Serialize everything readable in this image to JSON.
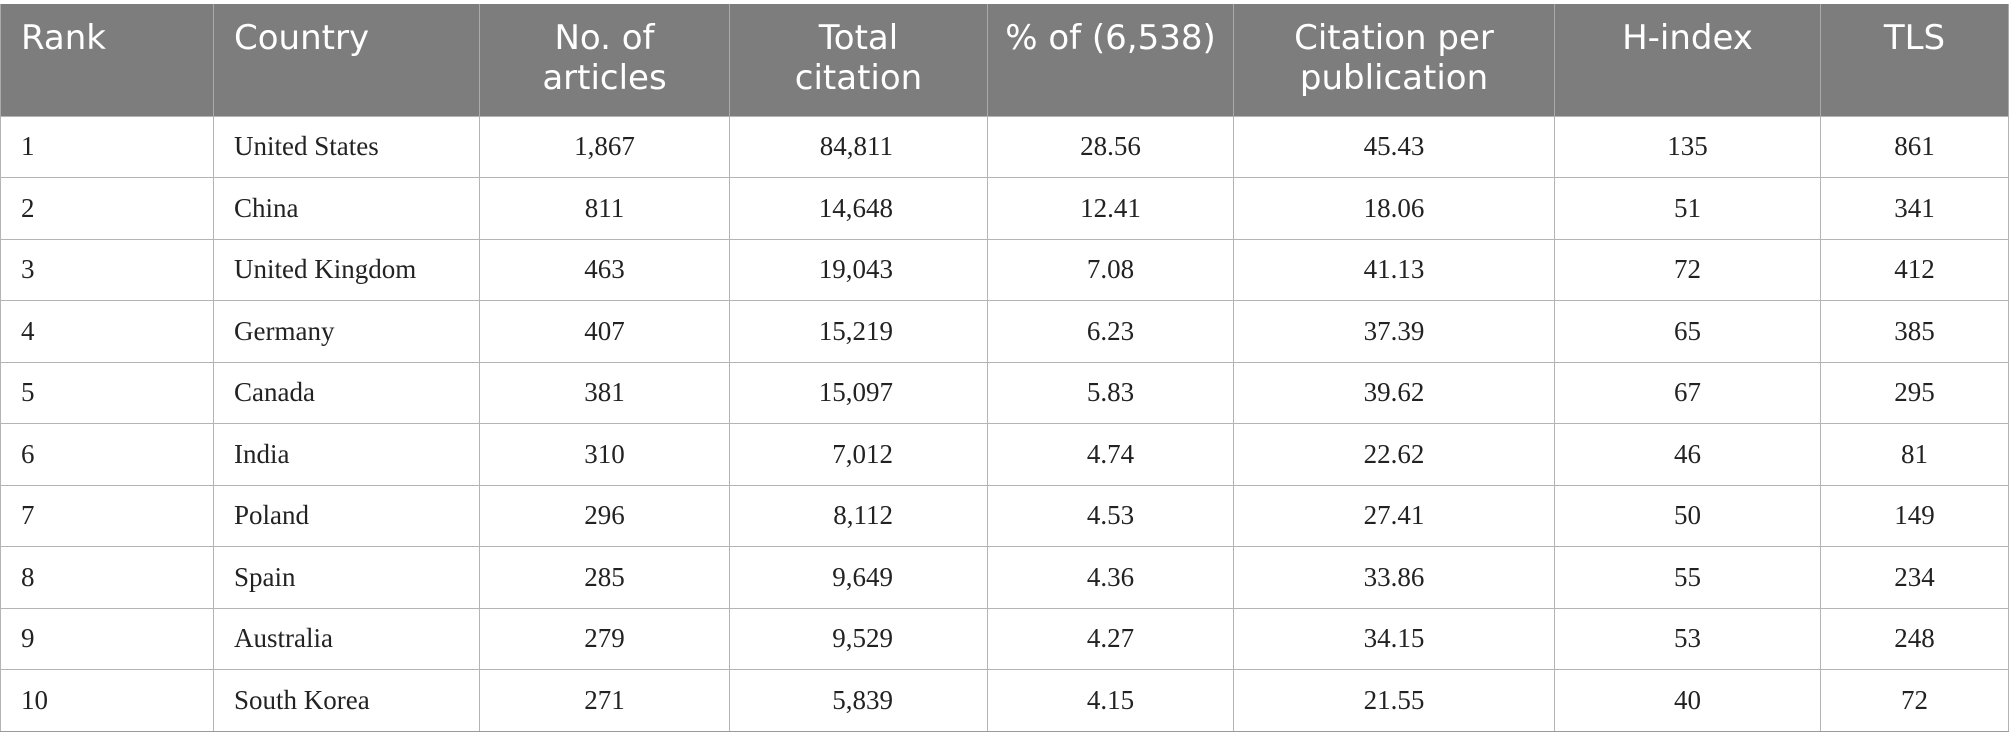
{
  "headers": {
    "rank": "Rank",
    "country": "Country",
    "articles_line1": "No. of",
    "articles_line2": "articles",
    "citation_line1": "Total",
    "citation_line2": "citation",
    "percent": "% of (6,538)",
    "cpp_line1": "Citation per",
    "cpp_line2": "publication",
    "hindex": "H-index",
    "tls": "TLS"
  },
  "rows": [
    {
      "rank": "1",
      "country": "United States",
      "articles": "1,867",
      "citations": "84,811",
      "percent": "28.56",
      "cpp": "45.43",
      "hindex": "135",
      "tls": "861"
    },
    {
      "rank": "2",
      "country": "China",
      "articles": "811",
      "citations": "14,648",
      "percent": "12.41",
      "cpp": "18.06",
      "hindex": "51",
      "tls": "341"
    },
    {
      "rank": "3",
      "country": "United Kingdom",
      "articles": "463",
      "citations": "19,043",
      "percent": "7.08",
      "cpp": "41.13",
      "hindex": "72",
      "tls": "412"
    },
    {
      "rank": "4",
      "country": "Germany",
      "articles": "407",
      "citations": "15,219",
      "percent": "6.23",
      "cpp": "37.39",
      "hindex": "65",
      "tls": "385"
    },
    {
      "rank": "5",
      "country": "Canada",
      "articles": "381",
      "citations": "15,097",
      "percent": "5.83",
      "cpp": "39.62",
      "hindex": "67",
      "tls": "295"
    },
    {
      "rank": "6",
      "country": "India",
      "articles": "310",
      "citations": "7,012",
      "percent": "4.74",
      "cpp": "22.62",
      "hindex": "46",
      "tls": "81"
    },
    {
      "rank": "7",
      "country": "Poland",
      "articles": "296",
      "citations": "8,112",
      "percent": "4.53",
      "cpp": "27.41",
      "hindex": "50",
      "tls": "149"
    },
    {
      "rank": "8",
      "country": "Spain",
      "articles": "285",
      "citations": "9,649",
      "percent": "4.36",
      "cpp": "33.86",
      "hindex": "55",
      "tls": "234"
    },
    {
      "rank": "9",
      "country": "Australia",
      "articles": "279",
      "citations": "9,529",
      "percent": "4.27",
      "cpp": "34.15",
      "hindex": "53",
      "tls": "248"
    },
    {
      "rank": "10",
      "country": "South Korea",
      "articles": "271",
      "citations": "5,839",
      "percent": "4.15",
      "cpp": "21.55",
      "hindex": "40",
      "tls": "72"
    }
  ]
}
